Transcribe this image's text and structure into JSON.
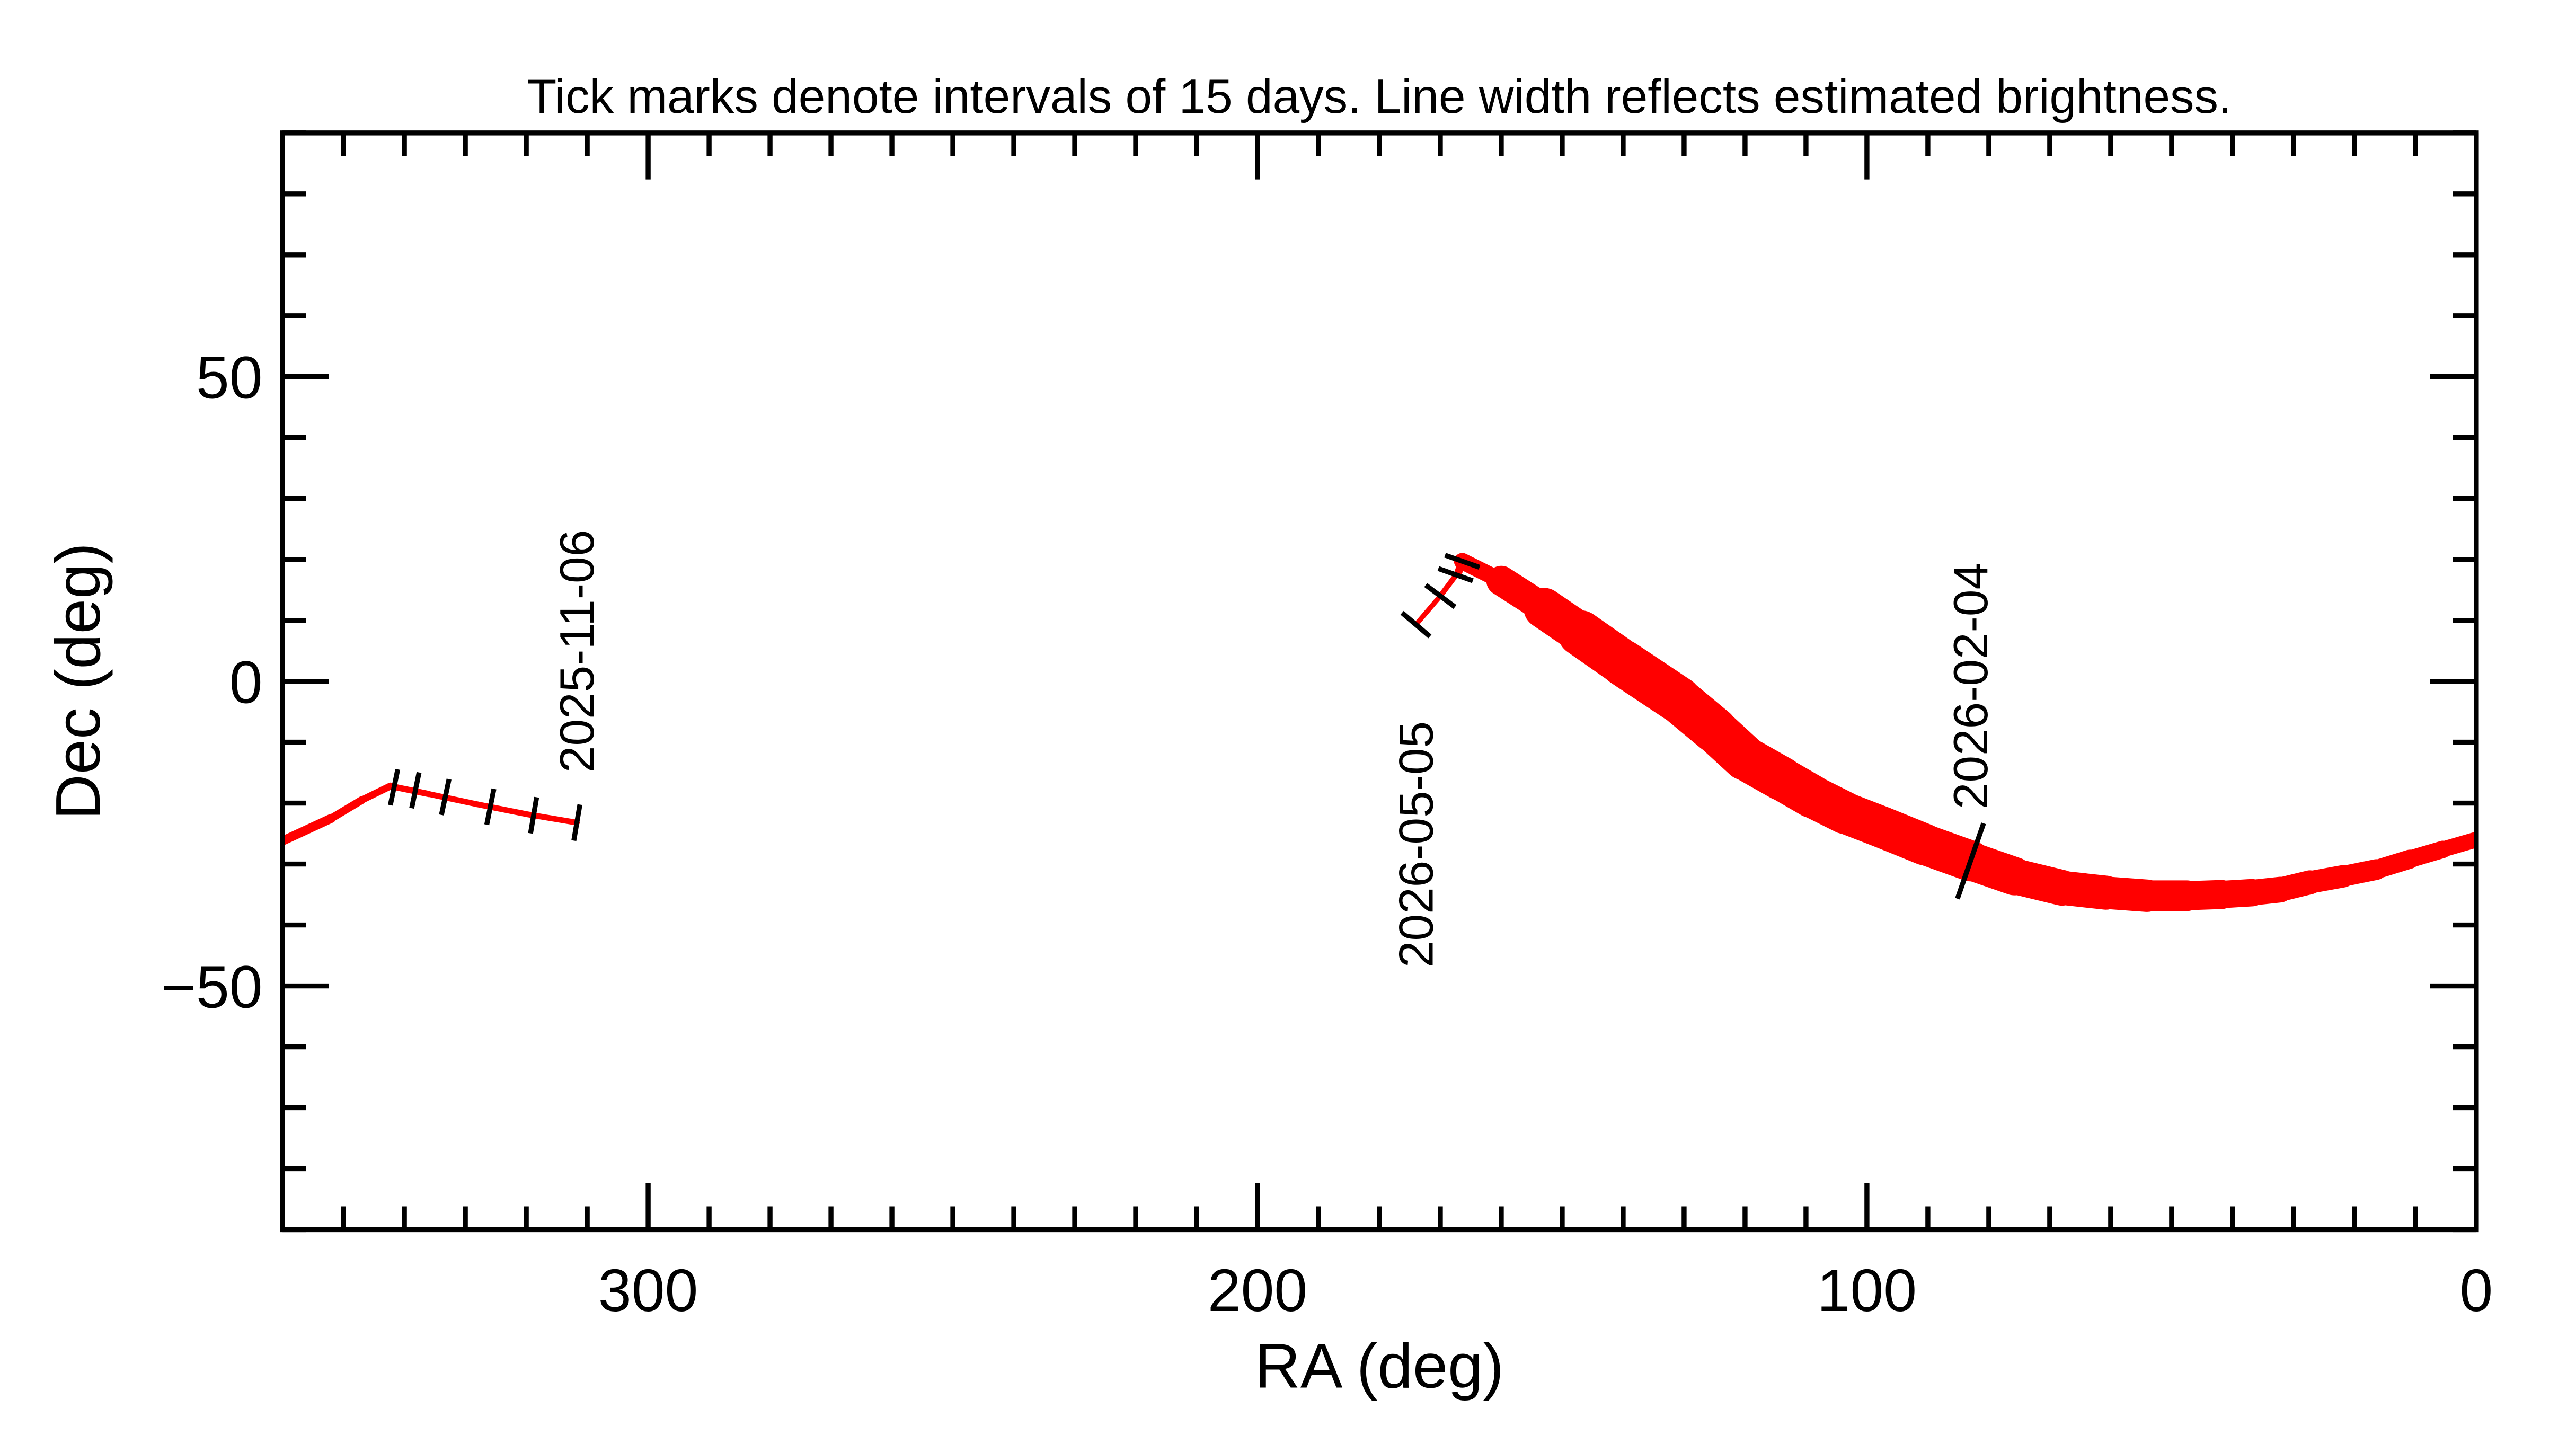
{
  "chart_data": {
    "type": "line",
    "title": "Tick marks denote intervals of 15 days.  Line width reflects estimated brightness.",
    "xlabel": "RA (deg)",
    "ylabel": "Dec (deg)",
    "xlim": [
      360,
      0
    ],
    "ylim": [
      -90,
      90
    ],
    "x_reversed": true,
    "x_major_ticks": [
      300,
      200,
      100,
      0
    ],
    "x_tick_labels": [
      "300",
      "200",
      "100",
      "0"
    ],
    "x_minor_step": 10,
    "y_major_ticks": [
      50,
      0,
      -50
    ],
    "y_tick_labels": [
      "50",
      "0",
      "−50"
    ],
    "y_minor_step": 10,
    "grid": false,
    "line_color": "#ff0000",
    "tick_color": "#000000",
    "series": [
      {
        "points_ra_dec_brightness": [
          [
            360,
            -26.2,
            6
          ],
          [
            352,
            -22.5,
            5
          ],
          [
            347,
            -19.5,
            4.5
          ],
          [
            342.3,
            -17.2,
            4
          ],
          [
            336,
            -18.5,
            3.5
          ],
          [
            328,
            -20.2,
            3.5
          ],
          [
            320,
            -21.8,
            3.5
          ],
          [
            311.7,
            -23.2,
            3.5
          ]
        ]
      },
      {
        "points_ra_dec_brightness": [
          [
            174,
            9.3,
            3
          ],
          [
            170,
            14,
            3
          ],
          [
            167,
            18,
            3.5
          ],
          [
            166.4,
            19.7,
            6
          ],
          [
            160,
            16.5,
            14
          ],
          [
            153,
            12,
            22
          ],
          [
            147,
            7.9,
            27
          ],
          [
            140,
            3,
            28
          ],
          [
            131,
            -3,
            28
          ],
          [
            125,
            -8,
            27
          ],
          [
            120,
            -12.6,
            27
          ],
          [
            114,
            -16,
            26
          ],
          [
            109,
            -18.9,
            26
          ],
          [
            103.6,
            -21.6,
            25
          ],
          [
            97.4,
            -24,
            25
          ],
          [
            90.5,
            -26.8,
            25
          ],
          [
            83,
            -29.5,
            24
          ],
          [
            75.8,
            -32,
            22
          ],
          [
            68,
            -33.9,
            21
          ],
          [
            60.8,
            -34.7,
            20
          ],
          [
            54,
            -35.2,
            19
          ],
          [
            47.5,
            -35.2,
            18
          ],
          [
            41.8,
            -35,
            17
          ],
          [
            36.8,
            -34.7,
            16
          ],
          [
            32.2,
            -34.2,
            15
          ],
          [
            27.3,
            -33,
            14
          ],
          [
            21.8,
            -32,
            13
          ],
          [
            16.4,
            -30.9,
            12
          ],
          [
            10.9,
            -29.2,
            11
          ],
          [
            5.5,
            -27.6,
            10
          ],
          [
            0,
            -26,
            9
          ]
        ]
      }
    ],
    "interval_ticks": [
      [
        341.7,
        -17.4
      ],
      [
        338.2,
        -17.9
      ],
      [
        333.3,
        -19.0
      ],
      [
        325.9,
        -20.6
      ],
      [
        318.8,
        -22.0
      ],
      [
        311.7,
        -23.2
      ],
      [
        174,
        9.3
      ],
      [
        170,
        14
      ],
      [
        167.5,
        17.5
      ],
      [
        166.4,
        19.7
      ],
      [
        83,
        -29.5
      ]
    ],
    "date_labels": [
      {
        "text": "2025-11-06",
        "ra": 311.7,
        "dec": -15
      },
      {
        "text": "2026-05-05",
        "ra": 174,
        "dec": -47
      },
      {
        "text": "2026-02-04",
        "ra": 83,
        "dec": -21
      }
    ]
  }
}
